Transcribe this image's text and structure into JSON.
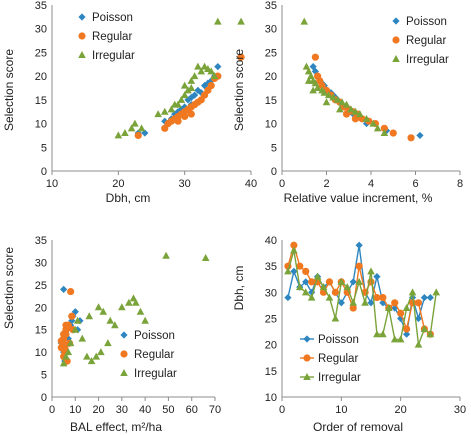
{
  "colors": {
    "Poisson": "#2e86c1",
    "Regular": "#f07820",
    "Irregular": "#7aa33a"
  },
  "chart_data": [
    {
      "type": "scatter",
      "title": "",
      "xlabel": "Dbh, cm",
      "ylabel": "Selection score",
      "xlim": [
        10,
        40
      ],
      "ylim": [
        0,
        35
      ],
      "xticks": [
        10,
        20,
        30,
        40
      ],
      "yticks": [
        0,
        5,
        10,
        15,
        20,
        25,
        30,
        35
      ],
      "grid": false,
      "legend": "top-left",
      "series": [
        {
          "name": "Poisson",
          "marker": "diamond",
          "points": [
            [
              23,
              8
            ],
            [
              24,
              8
            ],
            [
              27,
              10.5
            ],
            [
              28,
              11
            ],
            [
              28.5,
              12
            ],
            [
              29,
              12.5
            ],
            [
              29.5,
              13
            ],
            [
              30,
              13.5
            ],
            [
              30.5,
              15
            ],
            [
              31,
              15.5
            ],
            [
              31.5,
              16
            ],
            [
              32,
              17
            ],
            [
              32.5,
              16.5
            ],
            [
              33,
              18
            ],
            [
              33.5,
              18.5
            ],
            [
              34,
              19
            ],
            [
              34.5,
              20
            ],
            [
              35,
              22
            ],
            [
              29,
              11.5
            ],
            [
              31,
              14
            ]
          ]
        },
        {
          "name": "Regular",
          "marker": "circle",
          "points": [
            [
              23,
              7.5
            ],
            [
              27,
              9
            ],
            [
              27.5,
              10
            ],
            [
              28,
              10.5
            ],
            [
              28.5,
              11
            ],
            [
              29,
              11.5
            ],
            [
              29.5,
              12
            ],
            [
              30,
              12.5
            ],
            [
              30.5,
              13
            ],
            [
              31,
              13.5
            ],
            [
              31.5,
              14
            ],
            [
              32,
              14.5
            ],
            [
              32.5,
              15
            ],
            [
              33,
              16
            ],
            [
              33.5,
              17
            ],
            [
              34,
              18
            ],
            [
              34.5,
              19.5
            ],
            [
              35,
              20
            ],
            [
              38.5,
              24
            ],
            [
              29,
              10.5
            ],
            [
              30,
              11.5
            ],
            [
              31,
              12
            ]
          ]
        },
        {
          "name": "Irregular",
          "marker": "triangle",
          "points": [
            [
              20,
              7.5
            ],
            [
              21,
              8
            ],
            [
              22,
              9
            ],
            [
              22.5,
              10
            ],
            [
              23.5,
              9
            ],
            [
              26,
              12
            ],
            [
              27,
              12.5
            ],
            [
              28,
              13
            ],
            [
              29,
              14
            ],
            [
              29.5,
              15
            ],
            [
              30,
              16
            ],
            [
              30.5,
              17
            ],
            [
              31,
              19
            ],
            [
              31.5,
              20
            ],
            [
              32,
              22
            ],
            [
              32.5,
              21
            ],
            [
              33,
              22
            ],
            [
              33.5,
              21.5
            ],
            [
              34,
              21
            ],
            [
              34.5,
              20
            ],
            [
              35,
              31.5
            ],
            [
              38.5,
              31.5
            ],
            [
              28.5,
              14
            ],
            [
              30,
              18
            ],
            [
              31,
              17.5
            ]
          ]
        }
      ]
    },
    {
      "type": "scatter",
      "title": "",
      "xlabel": "Relative value increment, %",
      "ylabel": "Selection score",
      "xlim": [
        0,
        8
      ],
      "ylim": [
        0,
        35
      ],
      "xticks": [
        0,
        2,
        4,
        6,
        8
      ],
      "yticks": [
        0,
        5,
        10,
        15,
        20,
        25,
        30,
        35
      ],
      "grid": false,
      "legend": "top-right",
      "series": [
        {
          "name": "Poisson",
          "marker": "diamond",
          "points": [
            [
              6.2,
              7.5
            ],
            [
              4.7,
              8.5
            ],
            [
              3.8,
              10
            ],
            [
              3.6,
              11
            ],
            [
              3.4,
              11.5
            ],
            [
              3.2,
              12
            ],
            [
              3.0,
              12.5
            ],
            [
              2.9,
              13.5
            ],
            [
              2.7,
              14
            ],
            [
              2.5,
              15
            ],
            [
              2.4,
              15.5
            ],
            [
              2.3,
              16
            ],
            [
              2.2,
              16.5
            ],
            [
              2.0,
              17
            ],
            [
              1.9,
              18
            ],
            [
              1.8,
              18.5
            ],
            [
              1.7,
              19
            ],
            [
              1.6,
              20
            ],
            [
              1.5,
              21
            ],
            [
              1.4,
              22
            ]
          ]
        },
        {
          "name": "Regular",
          "marker": "circle",
          "points": [
            [
              5.8,
              7
            ],
            [
              5,
              8
            ],
            [
              4.6,
              9
            ],
            [
              4.2,
              10
            ],
            [
              3.9,
              10.5
            ],
            [
              3.6,
              11
            ],
            [
              3.4,
              12
            ],
            [
              3.2,
              12.5
            ],
            [
              3.0,
              13
            ],
            [
              2.8,
              13.5
            ],
            [
              2.6,
              14.5
            ],
            [
              2.4,
              15
            ],
            [
              2.2,
              16
            ],
            [
              2.0,
              17
            ],
            [
              1.8,
              18
            ],
            [
              1.7,
              19
            ],
            [
              1.6,
              20
            ],
            [
              1.5,
              24
            ],
            [
              3.3,
              11
            ],
            [
              2.9,
              12
            ]
          ]
        },
        {
          "name": "Irregular",
          "marker": "triangle",
          "points": [
            [
              1.0,
              31.5
            ],
            [
              1.1,
              22
            ],
            [
              1.2,
              21
            ],
            [
              1.3,
              20
            ],
            [
              1.4,
              19
            ],
            [
              1.5,
              18.5
            ],
            [
              1.6,
              17.5
            ],
            [
              1.8,
              17
            ],
            [
              1.9,
              16.5
            ],
            [
              2.1,
              16
            ],
            [
              2.3,
              15.5
            ],
            [
              2.5,
              15
            ],
            [
              2.7,
              14.5
            ],
            [
              2.9,
              14
            ],
            [
              3.1,
              13
            ],
            [
              3.3,
              12.5
            ],
            [
              3.5,
              12
            ],
            [
              3.8,
              11
            ],
            [
              4.1,
              10
            ],
            [
              4.3,
              9
            ],
            [
              4.6,
              8
            ],
            [
              1.2,
              19
            ],
            [
              1.4,
              17
            ],
            [
              2.0,
              14.5
            ],
            [
              2.6,
              13
            ]
          ]
        }
      ]
    },
    {
      "type": "scatter",
      "title": "",
      "xlabel": "BAL effect, m²/ha",
      "ylabel": "Selection score",
      "xlim": [
        0,
        70
      ],
      "ylim": [
        0,
        35
      ],
      "xticks": [
        0,
        10,
        20,
        30,
        40,
        50,
        60,
        70
      ],
      "yticks": [
        0,
        5,
        10,
        15,
        20,
        25,
        30,
        35
      ],
      "grid": false,
      "legend": "bottom-right",
      "series": [
        {
          "name": "Poisson",
          "marker": "diamond",
          "points": [
            [
              5,
              24
            ],
            [
              6,
              14
            ],
            [
              6.5,
              15
            ],
            [
              7,
              13
            ],
            [
              7.5,
              12
            ],
            [
              8,
              16
            ],
            [
              8.5,
              17
            ],
            [
              9,
              18
            ],
            [
              10,
              19
            ],
            [
              11,
              15
            ],
            [
              12,
              17
            ],
            [
              4,
              12
            ],
            [
              4.5,
              11
            ],
            [
              5,
              10
            ],
            [
              5.5,
              8
            ]
          ]
        },
        {
          "name": "Regular",
          "marker": "circle",
          "points": [
            [
              4,
              11
            ],
            [
              4.5,
              12
            ],
            [
              5,
              9
            ],
            [
              5,
              13
            ],
            [
              5.5,
              10
            ],
            [
              6,
              14
            ],
            [
              6,
              15
            ],
            [
              6.5,
              8
            ],
            [
              7,
              16
            ],
            [
              7.5,
              12
            ],
            [
              8,
              23.5
            ],
            [
              8.5,
              18
            ],
            [
              9,
              15
            ],
            [
              4,
              12.5
            ],
            [
              5,
              14
            ],
            [
              6,
              16
            ],
            [
              5.5,
              11
            ]
          ]
        },
        {
          "name": "Irregular",
          "marker": "triangle",
          "points": [
            [
              5,
              7.5
            ],
            [
              6,
              9
            ],
            [
              7,
              10
            ],
            [
              8,
              12
            ],
            [
              10,
              15
            ],
            [
              11,
              17
            ],
            [
              13,
              13
            ],
            [
              15,
              9
            ],
            [
              17,
              8
            ],
            [
              19,
              9
            ],
            [
              21,
              10
            ],
            [
              22,
              19
            ],
            [
              25,
              17
            ],
            [
              27,
              16
            ],
            [
              30,
              20
            ],
            [
              33,
              21
            ],
            [
              35,
              22
            ],
            [
              38,
              19
            ],
            [
              40,
              17
            ],
            [
              49,
              31.5
            ],
            [
              66,
              31
            ],
            [
              16,
              18
            ],
            [
              24,
              12
            ],
            [
              36,
              21
            ],
            [
              20,
              20
            ]
          ]
        }
      ]
    },
    {
      "type": "line",
      "title": "",
      "xlabel": "Order of removal",
      "ylabel": "Dbh, cm",
      "xlim": [
        0,
        30
      ],
      "ylim": [
        10,
        40
      ],
      "xticks": [
        0,
        10,
        20,
        30
      ],
      "yticks": [
        10,
        15,
        20,
        25,
        30,
        35,
        40
      ],
      "grid": false,
      "legend": "bottom-center",
      "series": [
        {
          "name": "Poisson",
          "marker": "diamond",
          "values": [
            29,
            34,
            31,
            32,
            30,
            33,
            31,
            32,
            30,
            28,
            30,
            32,
            39,
            30,
            28,
            33,
            28,
            27,
            27,
            25,
            22,
            29,
            25,
            29,
            29
          ]
        },
        {
          "name": "Regular",
          "marker": "circle",
          "values": [
            35,
            39,
            35,
            34,
            32,
            32,
            30,
            32,
            30,
            32,
            30,
            27,
            35,
            30,
            32,
            29,
            29,
            27,
            28,
            26,
            23,
            28,
            28,
            23,
            22
          ]
        },
        {
          "name": "Irregular",
          "marker": "triangle",
          "values": [
            34,
            38,
            31,
            30,
            29,
            33,
            31,
            29,
            25,
            32,
            31,
            28,
            32,
            28,
            34,
            22,
            22,
            27,
            21,
            21,
            27,
            30,
            20,
            23,
            22,
            30
          ]
        }
      ]
    }
  ]
}
